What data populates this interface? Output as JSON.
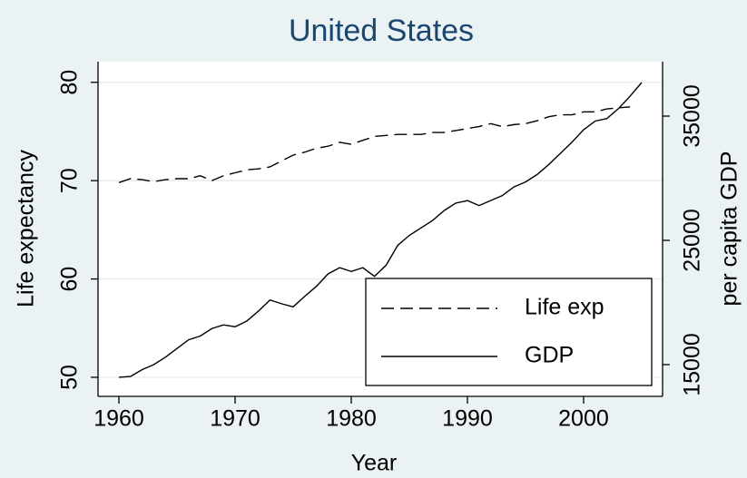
{
  "chart_data": {
    "type": "line",
    "title": "United States",
    "xlabel": "Year",
    "ylabel": "Life expectancy",
    "y2label": "per capita GDP",
    "x": [
      1960,
      1961,
      1962,
      1963,
      1964,
      1965,
      1966,
      1967,
      1968,
      1969,
      1970,
      1971,
      1972,
      1973,
      1974,
      1975,
      1976,
      1977,
      1978,
      1979,
      1980,
      1981,
      1982,
      1983,
      1984,
      1985,
      1986,
      1987,
      1988,
      1989,
      1990,
      1991,
      1992,
      1993,
      1994,
      1995,
      1996,
      1997,
      1998,
      1999,
      2000,
      2001,
      2002,
      2003,
      2004,
      2005
    ],
    "series": [
      {
        "name": "Life exp",
        "color": "#000000",
        "dash": true,
        "axis": "y",
        "values": [
          69.8,
          70.2,
          70.1,
          69.9,
          70.1,
          70.2,
          70.2,
          70.5,
          70.0,
          70.5,
          70.8,
          71.1,
          71.2,
          71.4,
          72.0,
          72.6,
          72.9,
          73.3,
          73.5,
          73.9,
          73.7,
          74.1,
          74.5,
          74.6,
          74.7,
          74.7,
          74.7,
          74.9,
          74.9,
          75.1,
          75.3,
          75.5,
          75.8,
          75.5,
          75.7,
          75.8,
          76.1,
          76.5,
          76.7,
          76.7,
          77.0,
          77.0,
          77.3,
          77.4,
          77.5,
          null
        ]
      },
      {
        "name": "GDP",
        "color": "#000000",
        "dash": false,
        "axis": "y2",
        "values": [
          13980,
          14050,
          14600,
          15000,
          15600,
          16300,
          17000,
          17300,
          17900,
          18200,
          18050,
          18500,
          19300,
          20200,
          19900,
          19650,
          20500,
          21300,
          22300,
          22800,
          22500,
          22800,
          22100,
          23000,
          24600,
          25400,
          26000,
          26600,
          27400,
          28000,
          28200,
          27800,
          28200,
          28600,
          29300,
          29700,
          30300,
          31100,
          32000,
          32900,
          33900,
          34600,
          34800,
          35600,
          36600,
          37700
        ]
      }
    ],
    "xlim": [
      1958.2,
      2006.8
    ],
    "xticks": [
      1960,
      1970,
      1980,
      1990,
      2000
    ],
    "ylim": [
      48.06,
      82.1
    ],
    "yticks": [
      50,
      60,
      70,
      80
    ],
    "y2lim": [
      12445,
      39380
    ],
    "y2ticks": [
      15000,
      25000,
      35000
    ],
    "grid": true,
    "legend": "lower right"
  }
}
